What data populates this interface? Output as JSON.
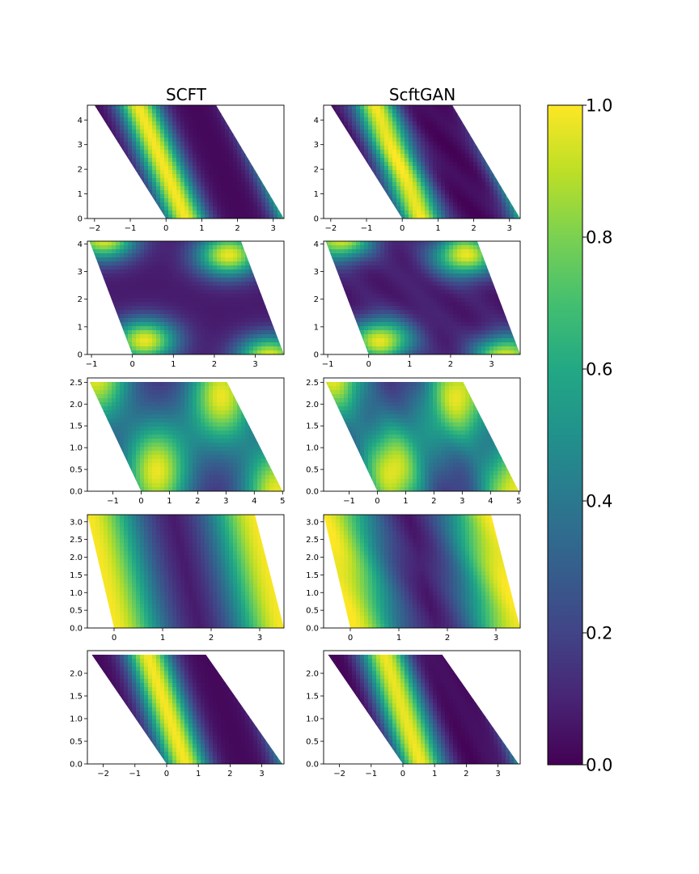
{
  "column_titles": [
    "SCFT",
    "ScftGAN"
  ],
  "colorbar": {
    "colormap": "viridis",
    "range": [
      0.0,
      1.0
    ],
    "ticks": [
      0.0,
      0.2,
      0.4,
      0.6,
      0.8,
      1.0
    ],
    "tick_labels": [
      "0.0",
      "0.2",
      "0.4",
      "0.6",
      "0.8",
      "1.0"
    ]
  },
  "chart_data": [
    {
      "type": "heatmap",
      "row": 1,
      "panels": [
        "SCFT",
        "ScftGAN"
      ],
      "domain": "parallelogram",
      "corners": [
        [
          -2.0,
          4.6
        ],
        [
          1.4,
          4.6
        ],
        [
          3.3,
          0.0
        ],
        [
          0.0,
          0.0
        ]
      ],
      "xlim": [
        -2.2,
        3.3
      ],
      "ylim": [
        0.0,
        4.6
      ],
      "xticks": [
        -2,
        -1,
        0,
        1,
        2,
        3
      ],
      "xtick_labels": [
        "−2",
        "−1",
        "0",
        "1",
        "2",
        "3"
      ],
      "yticks": [
        0,
        1,
        2,
        3,
        4
      ],
      "ytick_labels": [
        "0",
        "1",
        "2",
        "3",
        "4"
      ],
      "pattern": "lamellar",
      "stripe": {
        "lines": 2,
        "x_shift_per_y": -0.29,
        "center_x_at_y0": 0.55,
        "period": 3.15,
        "width": 0.42
      }
    },
    {
      "type": "heatmap",
      "row": 2,
      "panels": [
        "SCFT",
        "ScftGAN"
      ],
      "domain": "parallelogram",
      "corners": [
        [
          -1.05,
          4.1
        ],
        [
          2.65,
          4.1
        ],
        [
          3.7,
          0.0
        ],
        [
          0.0,
          0.0
        ]
      ],
      "xlim": [
        -1.1,
        3.7
      ],
      "ylim": [
        0.0,
        4.1
      ],
      "xticks": [
        -1,
        0,
        1,
        2,
        3
      ],
      "xtick_labels": [
        "−1",
        "0",
        "1",
        "2",
        "3"
      ],
      "yticks": [
        0,
        1,
        2,
        3,
        4
      ],
      "ytick_labels": [
        "0",
        "1",
        "2",
        "3",
        "4"
      ],
      "pattern": "spots",
      "spots": [
        [
          0.3,
          0.5
        ],
        [
          2.35,
          3.6
        ],
        [
          -0.7,
          4.2
        ],
        [
          3.35,
          -0.1
        ]
      ],
      "spot_width": 0.55
    },
    {
      "type": "heatmap",
      "row": 3,
      "panels": [
        "SCFT",
        "ScftGAN"
      ],
      "domain": "parallelogram",
      "corners": [
        [
          -1.85,
          2.55
        ],
        [
          3.0,
          2.55
        ],
        [
          5.0,
          0.0
        ],
        [
          0.0,
          0.0
        ]
      ],
      "xlim": [
        -1.9,
        5.05
      ],
      "ylim": [
        0.0,
        2.6
      ],
      "xticks": [
        -1,
        0,
        1,
        2,
        3,
        4,
        5
      ],
      "xtick_labels": [
        "−1",
        "0",
        "1",
        "2",
        "3",
        "4",
        "5"
      ],
      "yticks": [
        0.0,
        0.5,
        1.0,
        1.5,
        2.0,
        2.5
      ],
      "ytick_labels": [
        "0.0",
        "0.5",
        "1.0",
        "1.5",
        "2.0",
        "2.5"
      ],
      "pattern": "spots",
      "spots": [
        [
          0.55,
          0.45
        ],
        [
          2.85,
          2.2
        ],
        [
          -1.6,
          2.7
        ],
        [
          4.8,
          -0.05
        ]
      ],
      "spot_width": 0.85
    },
    {
      "type": "heatmap",
      "row": 4,
      "panels": [
        "SCFT",
        "ScftGAN"
      ],
      "domain": "parallelogram",
      "corners": [
        [
          -0.55,
          3.2
        ],
        [
          2.9,
          3.2
        ],
        [
          3.5,
          0.0
        ],
        [
          0.0,
          0.0
        ]
      ],
      "xlim": [
        -0.55,
        3.5
      ],
      "ylim": [
        0.0,
        3.2
      ],
      "xticks": [
        0,
        1,
        2,
        3
      ],
      "xtick_labels": [
        "0",
        "1",
        "2",
        "3"
      ],
      "yticks": [
        0.0,
        0.5,
        1.0,
        1.5,
        2.0,
        2.5,
        3.0
      ],
      "ytick_labels": [
        "0.0",
        "0.5",
        "1.0",
        "1.5",
        "2.0",
        "2.5",
        "3.0"
      ],
      "pattern": "lamellar",
      "stripe": {
        "lines": 2,
        "x_shift_per_y": -0.17,
        "center_x_at_y0": 0.0,
        "period": 3.5,
        "width": 0.72
      }
    },
    {
      "type": "heatmap",
      "row": 5,
      "panels": [
        "SCFT",
        "ScftGAN"
      ],
      "domain": "parallelogram",
      "corners": [
        [
          -2.4,
          2.45
        ],
        [
          1.2,
          2.45
        ],
        [
          3.65,
          0.0
        ],
        [
          0.0,
          0.0
        ]
      ],
      "xlim": [
        -2.5,
        3.7
      ],
      "ylim": [
        0.0,
        2.5
      ],
      "xticks": [
        -2,
        -1,
        0,
        1,
        2,
        3
      ],
      "xtick_labels": [
        "−2",
        "−1",
        "0",
        "1",
        "2",
        "3"
      ],
      "yticks": [
        0.0,
        0.5,
        1.0,
        1.5,
        2.0
      ],
      "ytick_labels": [
        "0.0",
        "0.5",
        "1.0",
        "1.5",
        "2.0"
      ],
      "pattern": "lamellar",
      "stripe": {
        "lines": 2,
        "x_shift_per_y": -0.5,
        "center_x_at_y0": 0.6,
        "period": 3.65,
        "width": 0.5
      }
    }
  ]
}
